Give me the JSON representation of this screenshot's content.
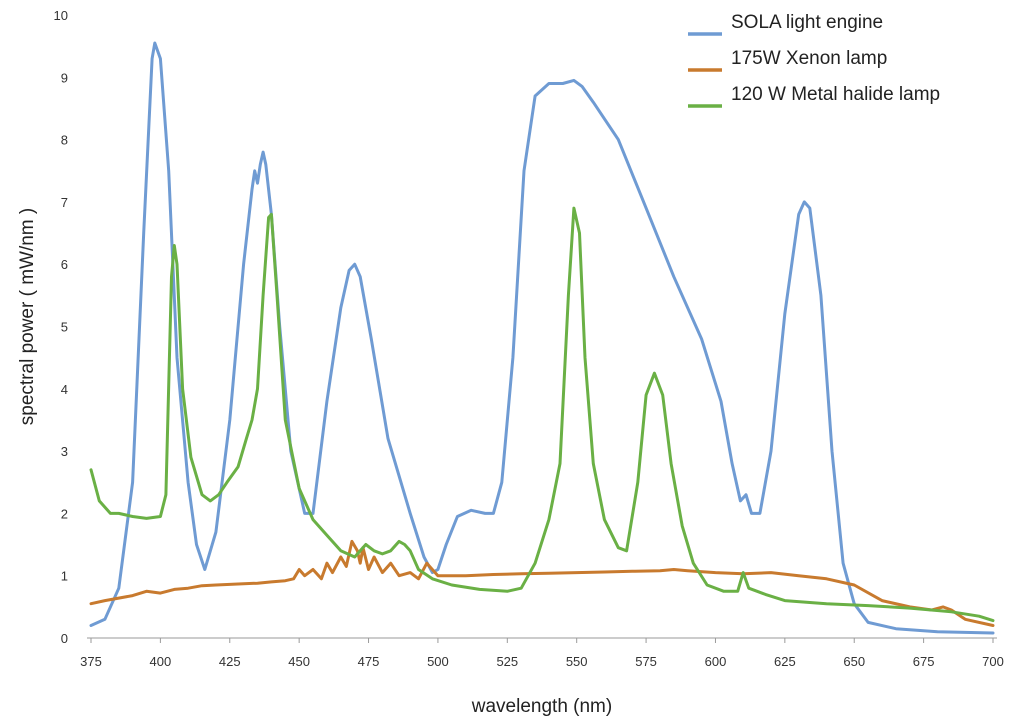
{
  "chart_data": {
    "type": "line",
    "title": "",
    "xlabel": "wavelength (nm)",
    "ylabel": "spectral power ( mW/nm )",
    "xlim": [
      375,
      700
    ],
    "ylim": [
      0,
      10
    ],
    "x_ticks": [
      375,
      400,
      425,
      450,
      475,
      500,
      525,
      550,
      575,
      600,
      625,
      650,
      675,
      700
    ],
    "y_ticks": [
      0,
      1,
      2,
      3,
      4,
      5,
      6,
      7,
      8,
      9,
      10
    ],
    "grid": false,
    "legend_position": "top-right",
    "series": [
      {
        "name": "SOLA light engine",
        "color": "#6f9bd3",
        "points": [
          [
            375,
            0.2
          ],
          [
            380,
            0.3
          ],
          [
            385,
            0.8
          ],
          [
            390,
            2.5
          ],
          [
            394,
            6.5
          ],
          [
            397,
            9.3
          ],
          [
            398,
            9.55
          ],
          [
            400,
            9.3
          ],
          [
            403,
            7.5
          ],
          [
            406,
            4.5
          ],
          [
            410,
            2.5
          ],
          [
            413,
            1.5
          ],
          [
            416,
            1.1
          ],
          [
            420,
            1.7
          ],
          [
            425,
            3.5
          ],
          [
            430,
            6.0
          ],
          [
            433,
            7.2
          ],
          [
            434,
            7.5
          ],
          [
            435,
            7.3
          ],
          [
            436,
            7.6
          ],
          [
            437,
            7.8
          ],
          [
            438,
            7.6
          ],
          [
            440,
            6.8
          ],
          [
            443,
            5.0
          ],
          [
            447,
            3.0
          ],
          [
            452,
            2.0
          ],
          [
            455,
            2.0
          ],
          [
            460,
            3.8
          ],
          [
            465,
            5.3
          ],
          [
            468,
            5.9
          ],
          [
            470,
            6.0
          ],
          [
            472,
            5.8
          ],
          [
            476,
            4.8
          ],
          [
            482,
            3.2
          ],
          [
            490,
            2.0
          ],
          [
            495,
            1.3
          ],
          [
            498,
            1.05
          ],
          [
            500,
            1.1
          ],
          [
            503,
            1.5
          ],
          [
            507,
            1.95
          ],
          [
            512,
            2.05
          ],
          [
            517,
            2.0
          ],
          [
            520,
            2.0
          ],
          [
            523,
            2.5
          ],
          [
            527,
            4.5
          ],
          [
            531,
            7.5
          ],
          [
            535,
            8.7
          ],
          [
            540,
            8.9
          ],
          [
            545,
            8.9
          ],
          [
            549,
            8.95
          ],
          [
            552,
            8.85
          ],
          [
            556,
            8.6
          ],
          [
            565,
            8.0
          ],
          [
            575,
            6.9
          ],
          [
            585,
            5.8
          ],
          [
            595,
            4.8
          ],
          [
            602,
            3.8
          ],
          [
            606,
            2.8
          ],
          [
            609,
            2.2
          ],
          [
            611,
            2.3
          ],
          [
            613,
            2.0
          ],
          [
            616,
            2.0
          ],
          [
            620,
            3.0
          ],
          [
            625,
            5.2
          ],
          [
            630,
            6.8
          ],
          [
            632,
            7.0
          ],
          [
            634,
            6.9
          ],
          [
            638,
            5.5
          ],
          [
            642,
            3.0
          ],
          [
            646,
            1.2
          ],
          [
            650,
            0.55
          ],
          [
            655,
            0.25
          ],
          [
            665,
            0.15
          ],
          [
            680,
            0.1
          ],
          [
            700,
            0.08
          ]
        ]
      },
      {
        "name": "175W Xenon lamp",
        "color": "#c87a2e",
        "points": [
          [
            375,
            0.55
          ],
          [
            380,
            0.6
          ],
          [
            390,
            0.68
          ],
          [
            395,
            0.75
          ],
          [
            400,
            0.72
          ],
          [
            405,
            0.78
          ],
          [
            410,
            0.8
          ],
          [
            415,
            0.84
          ],
          [
            420,
            0.85
          ],
          [
            425,
            0.86
          ],
          [
            430,
            0.87
          ],
          [
            435,
            0.88
          ],
          [
            440,
            0.9
          ],
          [
            445,
            0.92
          ],
          [
            448,
            0.95
          ],
          [
            450,
            1.1
          ],
          [
            452,
            1.0
          ],
          [
            455,
            1.1
          ],
          [
            458,
            0.95
          ],
          [
            460,
            1.2
          ],
          [
            462,
            1.05
          ],
          [
            465,
            1.3
          ],
          [
            467,
            1.15
          ],
          [
            469,
            1.55
          ],
          [
            471,
            1.4
          ],
          [
            472,
            1.2
          ],
          [
            473,
            1.45
          ],
          [
            475,
            1.1
          ],
          [
            477,
            1.3
          ],
          [
            480,
            1.05
          ],
          [
            483,
            1.2
          ],
          [
            486,
            1.0
          ],
          [
            490,
            1.05
          ],
          [
            493,
            0.95
          ],
          [
            496,
            1.2
          ],
          [
            500,
            1.0
          ],
          [
            510,
            1.0
          ],
          [
            520,
            1.02
          ],
          [
            530,
            1.03
          ],
          [
            540,
            1.04
          ],
          [
            550,
            1.05
          ],
          [
            560,
            1.06
          ],
          [
            570,
            1.07
          ],
          [
            580,
            1.08
          ],
          [
            585,
            1.1
          ],
          [
            590,
            1.08
          ],
          [
            600,
            1.05
          ],
          [
            610,
            1.03
          ],
          [
            620,
            1.05
          ],
          [
            630,
            1.0
          ],
          [
            640,
            0.95
          ],
          [
            650,
            0.85
          ],
          [
            660,
            0.6
          ],
          [
            670,
            0.5
          ],
          [
            678,
            0.45
          ],
          [
            682,
            0.5
          ],
          [
            685,
            0.45
          ],
          [
            690,
            0.3
          ],
          [
            700,
            0.2
          ]
        ]
      },
      {
        "name": "120 W Metal halide lamp",
        "color": "#6ab045",
        "points": [
          [
            375,
            2.7
          ],
          [
            378,
            2.2
          ],
          [
            382,
            2.0
          ],
          [
            385,
            2.0
          ],
          [
            390,
            1.95
          ],
          [
            395,
            1.92
          ],
          [
            400,
            1.95
          ],
          [
            402,
            2.3
          ],
          [
            404,
            5.8
          ],
          [
            405,
            6.3
          ],
          [
            406,
            6.0
          ],
          [
            408,
            4.0
          ],
          [
            411,
            2.9
          ],
          [
            415,
            2.3
          ],
          [
            418,
            2.2
          ],
          [
            421,
            2.3
          ],
          [
            424,
            2.5
          ],
          [
            428,
            2.75
          ],
          [
            431,
            3.2
          ],
          [
            433,
            3.5
          ],
          [
            435,
            4.0
          ],
          [
            437,
            5.5
          ],
          [
            439,
            6.75
          ],
          [
            440,
            6.8
          ],
          [
            442,
            5.5
          ],
          [
            445,
            3.5
          ],
          [
            450,
            2.4
          ],
          [
            455,
            1.9
          ],
          [
            460,
            1.65
          ],
          [
            465,
            1.4
          ],
          [
            470,
            1.3
          ],
          [
            472,
            1.4
          ],
          [
            474,
            1.5
          ],
          [
            477,
            1.4
          ],
          [
            480,
            1.35
          ],
          [
            483,
            1.4
          ],
          [
            486,
            1.55
          ],
          [
            488,
            1.5
          ],
          [
            490,
            1.4
          ],
          [
            493,
            1.1
          ],
          [
            498,
            0.95
          ],
          [
            505,
            0.85
          ],
          [
            515,
            0.78
          ],
          [
            525,
            0.75
          ],
          [
            530,
            0.8
          ],
          [
            535,
            1.2
          ],
          [
            540,
            1.9
          ],
          [
            544,
            2.8
          ],
          [
            547,
            5.5
          ],
          [
            549,
            6.9
          ],
          [
            551,
            6.5
          ],
          [
            553,
            4.5
          ],
          [
            556,
            2.8
          ],
          [
            560,
            1.9
          ],
          [
            565,
            1.45
          ],
          [
            568,
            1.4
          ],
          [
            572,
            2.5
          ],
          [
            575,
            3.9
          ],
          [
            578,
            4.25
          ],
          [
            581,
            3.9
          ],
          [
            584,
            2.8
          ],
          [
            588,
            1.8
          ],
          [
            592,
            1.2
          ],
          [
            597,
            0.85
          ],
          [
            603,
            0.75
          ],
          [
            608,
            0.75
          ],
          [
            610,
            1.05
          ],
          [
            612,
            0.8
          ],
          [
            618,
            0.7
          ],
          [
            625,
            0.6
          ],
          [
            640,
            0.55
          ],
          [
            655,
            0.52
          ],
          [
            670,
            0.48
          ],
          [
            685,
            0.42
          ],
          [
            695,
            0.35
          ],
          [
            700,
            0.28
          ]
        ]
      }
    ]
  }
}
